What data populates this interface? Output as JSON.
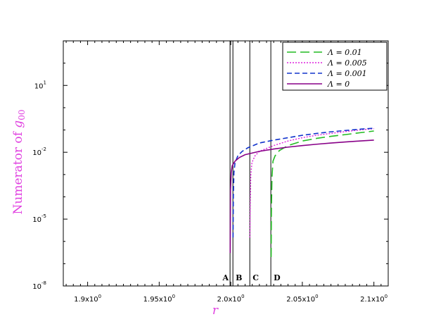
{
  "chart_data": {
    "type": "line",
    "xlabel": "r",
    "ylabel": "Numerator of g00",
    "ylabel_main": "Numerator of ",
    "ylabel_var": "g",
    "ylabel_sub": "00",
    "label_color": "#e040e0",
    "xlim": [
      1.883,
      2.11
    ],
    "ylim": [
      1e-08,
      1000
    ],
    "y_scale": "log",
    "grid": false,
    "legend_position": "top-right",
    "x_ticks": [
      {
        "value": 1.9,
        "base": "1.9x10",
        "exp": "0"
      },
      {
        "value": 1.95,
        "base": "1.95x10",
        "exp": "0"
      },
      {
        "value": 2.0,
        "base": "2.0x10",
        "exp": "0"
      },
      {
        "value": 2.05,
        "base": "2.05x10",
        "exp": "0"
      },
      {
        "value": 2.1,
        "base": "2.1x10",
        "exp": "0"
      }
    ],
    "y_ticks": [
      {
        "value": 10,
        "base": "10",
        "exp": "1"
      },
      {
        "value": 0.01,
        "base": "10",
        "exp": "-2"
      },
      {
        "value": 1e-05,
        "base": "10",
        "exp": "-5"
      },
      {
        "value": 1e-08,
        "base": "10",
        "exp": "-8"
      }
    ],
    "vertical_lines": [
      {
        "label": "A",
        "x": 1.9995
      },
      {
        "label": "B",
        "x": 2.0015
      },
      {
        "label": "C",
        "x": 2.0133
      },
      {
        "label": "D",
        "x": 2.028
      }
    ],
    "series": [
      {
        "name": "Λ = 0.01",
        "color": "#22bb22",
        "dash": "13,6",
        "width": 1.6,
        "x": [
          2.0282,
          2.0284,
          2.0288,
          2.0295,
          2.031,
          2.034,
          2.04,
          2.05,
          2.06,
          2.07,
          2.08,
          2.09,
          2.1
        ],
        "y": [
          2e-07,
          3e-05,
          0.0008,
          0.004,
          0.007,
          0.012,
          0.02,
          0.032,
          0.042,
          0.052,
          0.062,
          0.075,
          0.09
        ]
      },
      {
        "name": "Λ = 0.005",
        "color": "#dd22dd",
        "dash": "2,2",
        "width": 1.4,
        "x": [
          2.0134,
          2.0136,
          2.014,
          2.0148,
          2.017,
          2.02,
          2.03,
          2.04,
          2.05,
          2.06,
          2.07,
          2.08,
          2.09,
          2.1
        ],
        "y": [
          1.5e-06,
          4e-05,
          0.0009,
          0.0035,
          0.007,
          0.011,
          0.02,
          0.032,
          0.045,
          0.058,
          0.07,
          0.085,
          0.1,
          0.115
        ]
      },
      {
        "name": "Λ = 0.001",
        "color": "#1133cc",
        "dash": "7,4",
        "width": 1.6,
        "x": [
          2.0016,
          2.0018,
          2.0022,
          2.003,
          2.005,
          2.008,
          2.012,
          2.02,
          2.03,
          2.04,
          2.05,
          2.06,
          2.07,
          2.08,
          2.09,
          2.1
        ],
        "y": [
          1.5e-06,
          0.0001,
          0.0012,
          0.0035,
          0.007,
          0.011,
          0.016,
          0.026,
          0.035,
          0.045,
          0.058,
          0.07,
          0.083,
          0.095,
          0.108,
          0.12
        ]
      },
      {
        "name": "Λ = 0",
        "color": "#880088",
        "dash": "",
        "width": 1.6,
        "x": [
          1.9996,
          1.9998,
          2.0003,
          2.001,
          2.003,
          2.006,
          2.01,
          2.02,
          2.03,
          2.04,
          2.05,
          2.06,
          2.07,
          2.08,
          2.09,
          2.1
        ],
        "y": [
          3e-07,
          0.0002,
          0.0012,
          0.0025,
          0.004,
          0.0058,
          0.0078,
          0.011,
          0.014,
          0.017,
          0.02,
          0.023,
          0.026,
          0.029,
          0.032,
          0.035
        ]
      }
    ]
  }
}
